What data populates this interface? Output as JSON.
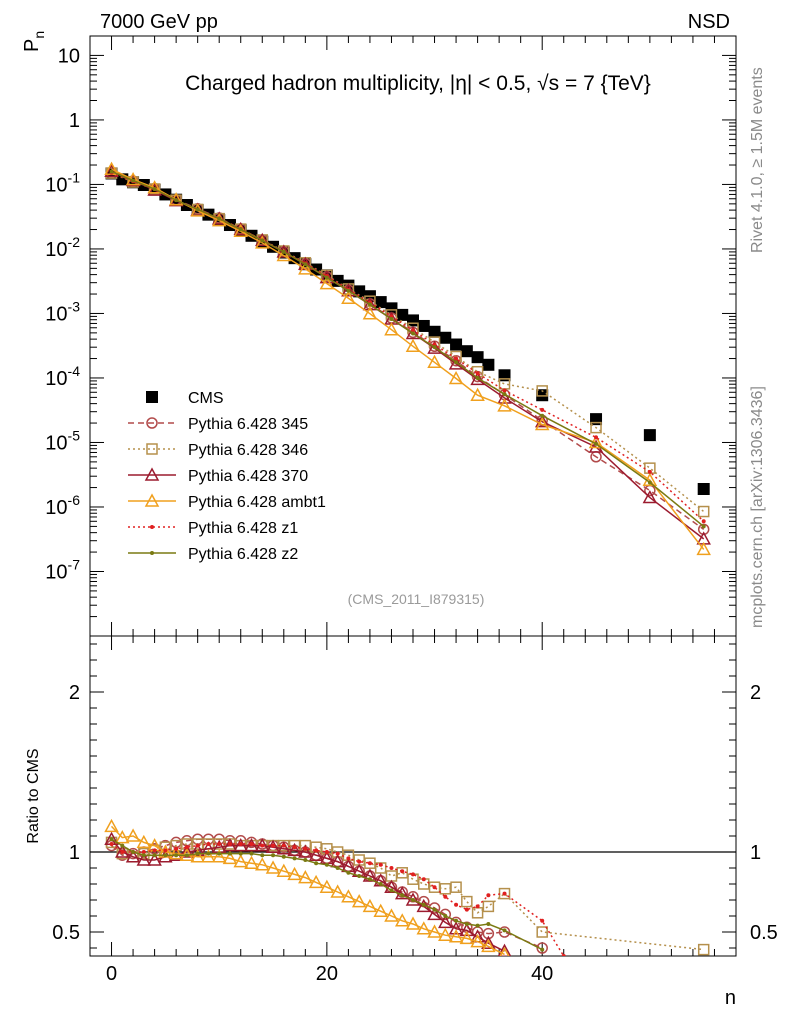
{
  "header": {
    "energy_label": "7000 GeV pp",
    "process_label": "NSD",
    "side_label_top": "Rivet 4.1.0, ≥ 1.5M events",
    "side_label_bottom": "mcplots.cern.ch [arXiv:1306.3436]"
  },
  "chart_data": [
    {
      "type": "scatter",
      "title": "Charged hadron multiplicity, |η| < 0.5, √s = 7 {TeV}",
      "annotation": "(CMS_2011_I879315)",
      "xlabel": "n",
      "ylabel": "Pn",
      "xlim": [
        -2,
        58
      ],
      "ylim": [
        1e-08,
        20
      ],
      "yscale": "log",
      "ytick_labels": [
        "10",
        "1",
        "10^-1",
        "10^-2",
        "10^-3",
        "10^-4",
        "10^-5",
        "10^-6",
        "10^-7"
      ],
      "legend_position": "bottom-left",
      "series": [
        {
          "name": "CMS",
          "color": "#000000",
          "marker": "filled-square",
          "line": "none",
          "x": [
            0,
            1,
            2,
            3,
            4,
            5,
            6,
            7,
            8,
            9,
            10,
            11,
            12,
            13,
            14,
            15,
            16,
            17,
            18,
            19,
            20,
            21,
            22,
            23,
            24,
            25,
            26,
            27,
            28,
            29,
            30,
            31,
            32,
            33,
            34,
            35,
            36.5,
            40,
            45,
            50,
            55
          ],
          "values": [
            0.148,
            0.12,
            0.108,
            0.098,
            0.083,
            0.07,
            0.058,
            0.048,
            0.04,
            0.034,
            0.028,
            0.0235,
            0.0195,
            0.016,
            0.013,
            0.0108,
            0.0088,
            0.0072,
            0.0058,
            0.0048,
            0.0039,
            0.0032,
            0.0027,
            0.0022,
            0.00185,
            0.0015,
            0.0012,
            0.00095,
            0.00078,
            0.00064,
            0.00052,
            0.00042,
            0.00033,
            0.00026,
            0.00021,
            0.00016,
            0.00011,
            5.4e-05,
            2.3e-05,
            1.3e-05,
            1.9e-06
          ]
        },
        {
          "name": "Pythia 6.428 345",
          "color": "#b24a4a",
          "marker": "open-circle",
          "line": "dashed",
          "x": [
            0,
            2,
            4,
            6,
            8,
            10,
            12,
            14,
            16,
            18,
            20,
            22,
            24,
            26,
            28,
            30,
            32,
            34,
            36.5,
            40,
            45,
            50,
            55
          ],
          "values": [
            0.154,
            0.113,
            0.086,
            0.058,
            0.042,
            0.0302,
            0.0205,
            0.0137,
            0.0091,
            0.0059,
            0.0037,
            0.0023,
            0.00141,
            0.00085,
            0.00051,
            0.00031,
            0.000185,
            0.000105,
            5.5e-05,
            2.2e-05,
            6e-06,
            1.8e-06,
            4.5e-07
          ]
        },
        {
          "name": "Pythia 6.428 346",
          "color": "#b5904c",
          "marker": "open-square",
          "line": "dotted",
          "x": [
            0,
            2,
            4,
            6,
            8,
            10,
            12,
            14,
            16,
            18,
            20,
            22,
            24,
            26,
            28,
            30,
            32,
            34,
            36.5,
            40,
            45,
            50,
            55
          ],
          "values": [
            0.15,
            0.109,
            0.085,
            0.057,
            0.041,
            0.0295,
            0.0203,
            0.0138,
            0.0093,
            0.0061,
            0.0039,
            0.0024,
            0.00155,
            0.00095,
            0.00059,
            0.00036,
            0.000215,
            0.000125,
            8.1e-05,
            6.3e-05,
            1.7e-05,
            4e-06,
            8.5e-07
          ]
        },
        {
          "name": "Pythia 6.428 370",
          "color": "#9c1b2f",
          "marker": "open-triangle",
          "line": "solid",
          "x": [
            0,
            2,
            4,
            6,
            8,
            10,
            12,
            14,
            16,
            18,
            20,
            22,
            24,
            26,
            28,
            30,
            32,
            34,
            36.5,
            40,
            45,
            50,
            55
          ],
          "values": [
            0.16,
            0.115,
            0.082,
            0.056,
            0.04,
            0.0292,
            0.0201,
            0.0136,
            0.009,
            0.0058,
            0.0036,
            0.00225,
            0.00137,
            0.00082,
            0.00049,
            0.00029,
            0.000165,
            9.5e-05,
            4.9e-05,
            2.1e-05,
            8.5e-06,
            1.4e-06,
            3.2e-07
          ]
        },
        {
          "name": "Pythia 6.428 ambt1",
          "color": "#f0a01e",
          "marker": "open-triangle",
          "line": "solid",
          "x": [
            0,
            2,
            4,
            6,
            8,
            10,
            12,
            14,
            16,
            18,
            20,
            22,
            24,
            26,
            28,
            30,
            32,
            34,
            36.5,
            40,
            45,
            50,
            55
          ],
          "values": [
            0.172,
            0.119,
            0.089,
            0.058,
            0.039,
            0.0275,
            0.0188,
            0.0124,
            0.0079,
            0.0049,
            0.0029,
            0.00172,
            0.00099,
            0.00056,
            0.00031,
            0.000175,
            9.8e-05,
            5.4e-05,
            3.7e-05,
            1.9e-05,
            1e-05,
            2.6e-06,
            2.2e-07
          ]
        },
        {
          "name": "Pythia 6.428 z1",
          "color": "#e02020",
          "marker": "dot",
          "line": "dotted",
          "x": [
            0,
            2,
            4,
            6,
            8,
            10,
            12,
            14,
            16,
            18,
            20,
            22,
            24,
            26,
            28,
            30,
            32,
            34,
            36.5,
            40,
            45,
            50,
            55
          ],
          "values": [
            0.152,
            0.112,
            0.085,
            0.057,
            0.041,
            0.0298,
            0.0204,
            0.0136,
            0.0091,
            0.006,
            0.0038,
            0.00235,
            0.00148,
            0.0009,
            0.00055,
            0.00033,
            0.0002,
            0.000118,
            6.4e-05,
            3.2e-05,
            1.2e-05,
            3.5e-06,
            6e-07
          ]
        },
        {
          "name": "Pythia 6.428 z2",
          "color": "#7a7a12",
          "marker": "dot",
          "line": "solid",
          "x": [
            0,
            2,
            4,
            6,
            8,
            10,
            12,
            14,
            16,
            18,
            20,
            22,
            24,
            26,
            28,
            30,
            32,
            34,
            36.5,
            40,
            45,
            50,
            55
          ],
          "values": [
            0.158,
            0.115,
            0.085,
            0.057,
            0.041,
            0.0295,
            0.0201,
            0.0135,
            0.009,
            0.0058,
            0.0036,
            0.00225,
            0.00138,
            0.00082,
            0.00049,
            0.0003,
            0.000175,
            0.0001,
            5.6e-05,
            2.6e-05,
            9.5e-06,
            2.4e-06,
            5e-07
          ]
        }
      ]
    },
    {
      "type": "line",
      "ylabel": "Ratio to CMS",
      "xlabel": "n",
      "xlim": [
        -2,
        58
      ],
      "ylim": [
        0.35,
        2.35
      ],
      "ytick_labels": [
        "0.5",
        "1",
        "2"
      ],
      "xtick_labels": [
        "0",
        "20",
        "40"
      ],
      "reference_line": 1,
      "series": [
        {
          "name": "Pythia 6.428 345",
          "x": [
            0,
            1,
            2,
            3,
            4,
            5,
            6,
            7,
            8,
            9,
            10,
            11,
            12,
            13,
            14,
            15,
            16,
            17,
            18,
            19,
            20,
            21,
            22,
            23,
            24,
            25,
            26,
            27,
            28,
            29,
            30,
            31,
            32,
            33,
            34,
            35,
            36.5,
            40
          ],
          "values": [
            1.04,
            0.98,
            0.99,
            1.0,
            1.02,
            1.04,
            1.06,
            1.07,
            1.08,
            1.08,
            1.08,
            1.07,
            1.07,
            1.06,
            1.05,
            1.04,
            1.03,
            1.01,
            1.0,
            0.98,
            0.96,
            0.94,
            0.91,
            0.88,
            0.85,
            0.82,
            0.78,
            0.75,
            0.72,
            0.69,
            0.65,
            0.61,
            0.56,
            0.53,
            0.5,
            0.49,
            0.5,
            0.4
          ]
        },
        {
          "name": "Pythia 6.428 346",
          "x": [
            0,
            1,
            2,
            3,
            4,
            5,
            6,
            7,
            8,
            9,
            10,
            11,
            12,
            13,
            14,
            15,
            16,
            17,
            18,
            19,
            20,
            21,
            22,
            23,
            24,
            25,
            26,
            27,
            28,
            29,
            30,
            31,
            32,
            33,
            34,
            35,
            36.5,
            40,
            55
          ],
          "values": [
            1.06,
            0.99,
            0.97,
            0.99,
            1.01,
            1.03,
            1.04,
            1.05,
            1.05,
            1.05,
            1.05,
            1.05,
            1.04,
            1.04,
            1.04,
            1.04,
            1.04,
            1.04,
            1.04,
            1.03,
            1.02,
            1.0,
            0.98,
            0.95,
            0.93,
            0.9,
            0.85,
            0.87,
            0.83,
            0.8,
            0.78,
            0.77,
            0.78,
            0.69,
            0.62,
            0.66,
            0.74,
            0.5,
            0.39
          ]
        },
        {
          "name": "Pythia 6.428 370",
          "x": [
            0,
            1,
            2,
            3,
            4,
            5,
            6,
            7,
            8,
            9,
            10,
            11,
            12,
            13,
            14,
            15,
            16,
            17,
            18,
            19,
            20,
            21,
            22,
            23,
            24,
            25,
            26,
            27,
            28,
            29,
            30,
            31,
            32,
            33,
            34,
            35,
            36.5
          ],
          "values": [
            1.08,
            1.0,
            0.97,
            0.95,
            0.95,
            0.97,
            0.98,
            1.0,
            1.01,
            1.02,
            1.03,
            1.04,
            1.04,
            1.04,
            1.04,
            1.03,
            1.02,
            1.01,
            1.0,
            0.98,
            0.96,
            0.94,
            0.91,
            0.88,
            0.85,
            0.82,
            0.78,
            0.74,
            0.7,
            0.66,
            0.61,
            0.56,
            0.52,
            0.51,
            0.47,
            0.43,
            0.38
          ]
        },
        {
          "name": "Pythia 6.428 ambt1",
          "x": [
            0,
            1,
            2,
            3,
            4,
            5,
            6,
            7,
            8,
            9,
            10,
            11,
            12,
            13,
            14,
            15,
            16,
            17,
            18,
            19,
            20,
            21,
            22,
            23,
            24,
            25,
            26,
            27,
            28,
            29,
            30,
            31,
            32,
            33,
            34,
            35,
            36.5
          ],
          "values": [
            1.16,
            1.09,
            1.1,
            1.06,
            1.04,
            1.0,
            0.99,
            0.98,
            0.97,
            0.97,
            0.97,
            0.96,
            0.94,
            0.93,
            0.92,
            0.9,
            0.88,
            0.86,
            0.84,
            0.81,
            0.78,
            0.75,
            0.72,
            0.69,
            0.66,
            0.63,
            0.6,
            0.57,
            0.55,
            0.52,
            0.5,
            0.48,
            0.47,
            0.46,
            0.44,
            0.41,
            0.36
          ]
        },
        {
          "name": "Pythia 6.428 z1",
          "x": [
            0,
            1,
            2,
            3,
            4,
            5,
            6,
            7,
            8,
            9,
            10,
            11,
            12,
            13,
            14,
            15,
            16,
            17,
            18,
            19,
            20,
            21,
            22,
            23,
            24,
            25,
            26,
            27,
            28,
            29,
            30,
            31,
            32,
            33,
            34,
            35,
            36.5,
            40,
            42
          ],
          "values": [
            1.05,
            1.0,
            1.0,
            1.0,
            1.01,
            1.01,
            1.02,
            1.03,
            1.04,
            1.05,
            1.05,
            1.05,
            1.05,
            1.05,
            1.04,
            1.04,
            1.04,
            1.03,
            1.02,
            1.01,
            1.0,
            0.99,
            0.96,
            0.94,
            0.93,
            0.92,
            0.9,
            0.88,
            0.86,
            0.83,
            0.78,
            0.72,
            0.67,
            0.64,
            0.66,
            0.73,
            0.74,
            0.57,
            0.35
          ]
        },
        {
          "name": "Pythia 6.428 z2",
          "x": [
            0,
            1,
            2,
            3,
            4,
            5,
            6,
            7,
            8,
            9,
            10,
            11,
            12,
            13,
            14,
            15,
            16,
            17,
            18,
            19,
            20,
            21,
            22,
            23,
            24,
            25,
            26,
            27,
            28,
            29,
            30,
            31,
            32,
            33,
            34,
            35,
            36.5,
            40
          ],
          "values": [
            1.08,
            1.04,
            1.0,
            0.98,
            0.98,
            0.98,
            0.98,
            0.98,
            0.99,
            0.99,
            0.99,
            0.99,
            0.99,
            0.99,
            0.98,
            0.98,
            0.97,
            0.96,
            0.95,
            0.93,
            0.92,
            0.9,
            0.87,
            0.85,
            0.83,
            0.8,
            0.76,
            0.73,
            0.7,
            0.67,
            0.64,
            0.6,
            0.57,
            0.55,
            0.54,
            0.55,
            0.51,
            0.39
          ]
        }
      ]
    }
  ]
}
